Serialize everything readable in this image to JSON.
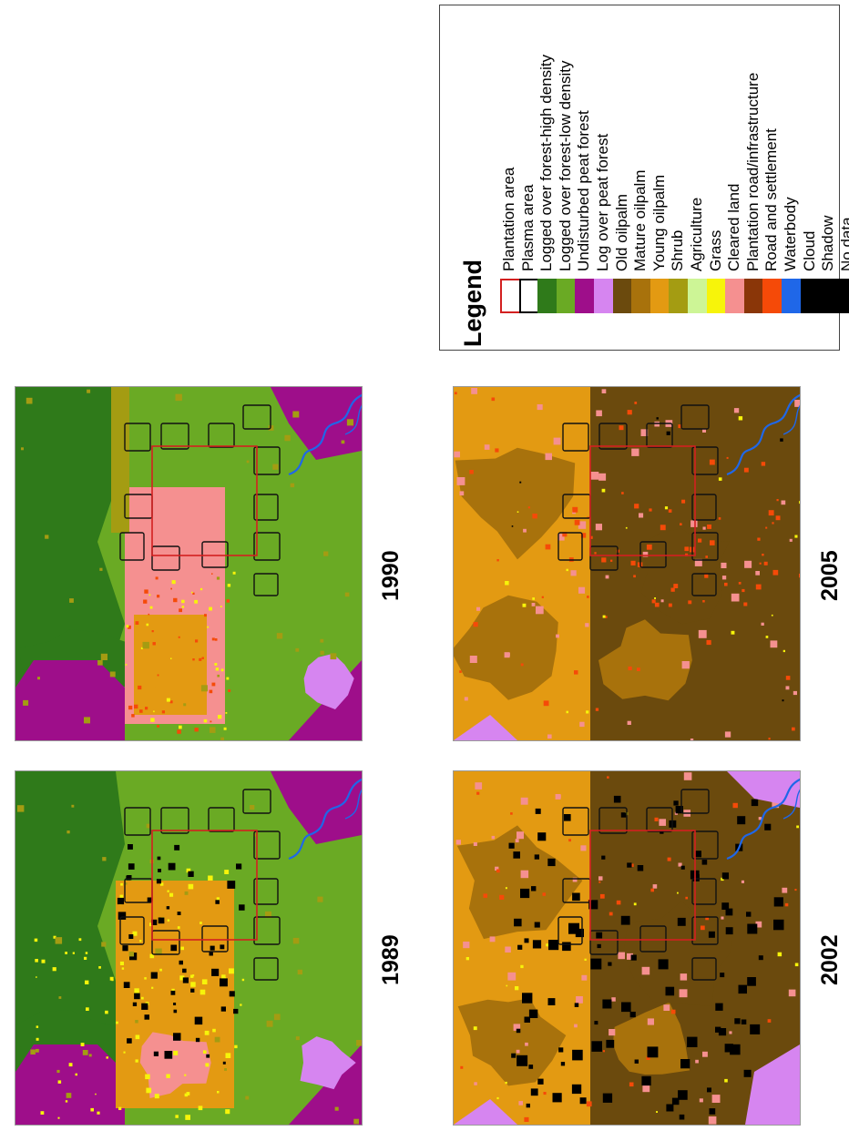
{
  "legend": {
    "title": "Legend",
    "items": [
      {
        "label": "Plantation area",
        "color": "#ffffff",
        "border": "#d32020"
      },
      {
        "label": "Plasma area",
        "color": "#ffffff",
        "border": "#000000"
      },
      {
        "label": "Logged over forest-high density",
        "color": "#2f7a1a"
      },
      {
        "label": "Logged over forest-low density",
        "color": "#6aaa24"
      },
      {
        "label": "Undisturbed peat forest",
        "color": "#9e0e8a"
      },
      {
        "label": "Log over peat forest",
        "color": "#d685f0"
      },
      {
        "label": "Old oilpalm",
        "color": "#6b4a0d"
      },
      {
        "label": "Mature oilpalm",
        "color": "#a8720c"
      },
      {
        "label": "Young oilpalm",
        "color": "#e39a12"
      },
      {
        "label": "Shrub",
        "color": "#a49c12"
      },
      {
        "label": "Agriculture",
        "color": "#cdf596"
      },
      {
        "label": "Grass",
        "color": "#f7f40a"
      },
      {
        "label": "Cleared land",
        "color": "#f59090"
      },
      {
        "label": "Plantation road/infrastructure",
        "color": "#8a3608"
      },
      {
        "label": "Road and settlement",
        "color": "#f54a08"
      },
      {
        "label": "Waterbody",
        "color": "#1f67e8"
      },
      {
        "label": "Cloud",
        "color": "#000000"
      },
      {
        "label": "Shadow",
        "color": "#000000"
      },
      {
        "label": "No data",
        "color": "#000000"
      }
    ]
  },
  "maps": [
    {
      "year": "1989"
    },
    {
      "year": "1990"
    },
    {
      "year": "2002"
    },
    {
      "year": "2005"
    }
  ]
}
